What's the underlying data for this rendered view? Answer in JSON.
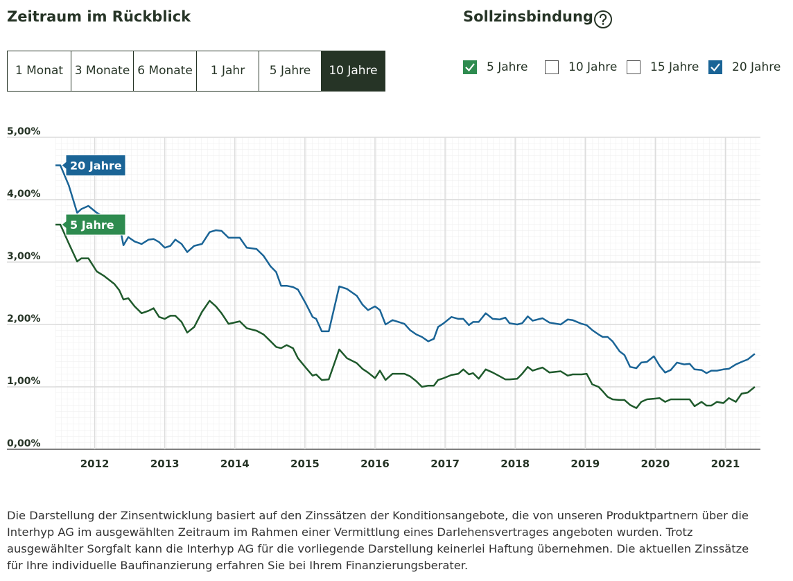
{
  "period": {
    "title": "Zeitraum im Rückblick",
    "options": [
      "1 Monat",
      "3 Monate",
      "6 Monate",
      "1 Jahr",
      "5 Jahre",
      "10 Jahre"
    ],
    "selected": 5
  },
  "binding": {
    "title": "Sollzinsbindung",
    "options": [
      {
        "label": "5 Jahre",
        "checked": true,
        "color": "#2e8b4f"
      },
      {
        "label": "10 Jahre",
        "checked": false,
        "color": "#2e8b4f"
      },
      {
        "label": "15 Jahre",
        "checked": false,
        "color": "#2e8b4f"
      },
      {
        "label": "20 Jahre",
        "checked": true,
        "color": "#1a6496"
      }
    ]
  },
  "chart_data": {
    "type": "line",
    "x": [
      2011.44,
      2011.51,
      2011.63,
      2011.75,
      2011.81,
      2011.91,
      2012.03,
      2012.13,
      2012.28,
      2012.35,
      2012.41,
      2012.48,
      2012.57,
      2012.67,
      2012.77,
      2012.84,
      2012.92,
      2013.0,
      2013.08,
      2013.15,
      2013.24,
      2013.32,
      2013.42,
      2013.53,
      2013.64,
      2013.73,
      2013.81,
      2013.91,
      2014.07,
      2014.17,
      2014.31,
      2014.41,
      2014.51,
      2014.59,
      2014.66,
      2014.74,
      2014.83,
      2014.9,
      2015.01,
      2015.11,
      2015.16,
      2015.24,
      2015.34,
      2015.49,
      2015.6,
      2015.74,
      2015.82,
      2015.9,
      2016.0,
      2016.07,
      2016.15,
      2016.25,
      2016.42,
      2016.5,
      2016.59,
      2016.67,
      2016.76,
      2016.84,
      2016.9,
      2016.98,
      2017.09,
      2017.19,
      2017.26,
      2017.34,
      2017.4,
      2017.48,
      2017.58,
      2017.68,
      2017.78,
      2017.86,
      2017.92,
      2018.03,
      2018.1,
      2018.18,
      2018.25,
      2018.39,
      2018.49,
      2018.65,
      2018.75,
      2018.82,
      2018.95,
      2019.02,
      2019.1,
      2019.19,
      2019.25,
      2019.32,
      2019.39,
      2019.49,
      2019.56,
      2019.64,
      2019.73,
      2019.8,
      2019.88,
      2019.98,
      2020.06,
      2020.14,
      2020.22,
      2020.31,
      2020.41,
      2020.49,
      2020.56,
      2020.66,
      2020.73,
      2020.8,
      2020.88,
      2020.97,
      2021.05,
      2021.15,
      2021.23,
      2021.32,
      2021.42
    ],
    "series": [
      {
        "name": "20 Jahre",
        "color": "#1a6496",
        "label_color": "#1a6496",
        "values": [
          4.55,
          4.55,
          4.23,
          3.79,
          3.85,
          3.9,
          3.79,
          3.73,
          3.65,
          3.62,
          3.27,
          3.4,
          3.33,
          3.29,
          3.36,
          3.37,
          3.32,
          3.23,
          3.26,
          3.36,
          3.29,
          3.16,
          3.26,
          3.29,
          3.48,
          3.51,
          3.5,
          3.39,
          3.39,
          3.23,
          3.21,
          3.1,
          2.93,
          2.84,
          2.62,
          2.62,
          2.6,
          2.56,
          2.34,
          2.12,
          2.09,
          1.89,
          1.89,
          2.61,
          2.57,
          2.46,
          2.32,
          2.23,
          2.29,
          2.23,
          2.0,
          2.07,
          2.01,
          1.91,
          1.84,
          1.8,
          1.73,
          1.77,
          1.96,
          2.02,
          2.12,
          2.09,
          2.09,
          1.99,
          2.04,
          2.04,
          2.18,
          2.09,
          2.08,
          2.11,
          2.02,
          2.0,
          2.02,
          2.13,
          2.06,
          2.1,
          2.03,
          2.0,
          2.08,
          2.07,
          2.01,
          1.99,
          1.91,
          1.84,
          1.8,
          1.8,
          1.73,
          1.57,
          1.51,
          1.32,
          1.3,
          1.39,
          1.4,
          1.49,
          1.34,
          1.23,
          1.27,
          1.39,
          1.36,
          1.37,
          1.28,
          1.27,
          1.22,
          1.26,
          1.26,
          1.28,
          1.29,
          1.36,
          1.4,
          1.44,
          1.53
        ]
      },
      {
        "name": "5 Jahre",
        "color": "#1f5a2c",
        "label_color": "#2e8b4f",
        "values": [
          3.6,
          3.6,
          3.3,
          3.01,
          3.06,
          3.06,
          2.85,
          2.78,
          2.65,
          2.55,
          2.4,
          2.42,
          2.29,
          2.18,
          2.22,
          2.26,
          2.12,
          2.09,
          2.14,
          2.14,
          2.04,
          1.87,
          1.96,
          2.2,
          2.38,
          2.29,
          2.18,
          2.01,
          2.05,
          1.94,
          1.9,
          1.84,
          1.73,
          1.64,
          1.62,
          1.67,
          1.62,
          1.46,
          1.31,
          1.18,
          1.2,
          1.11,
          1.12,
          1.6,
          1.46,
          1.38,
          1.29,
          1.23,
          1.14,
          1.26,
          1.11,
          1.21,
          1.21,
          1.17,
          1.09,
          1.0,
          1.02,
          1.02,
          1.11,
          1.14,
          1.19,
          1.21,
          1.28,
          1.2,
          1.22,
          1.13,
          1.28,
          1.23,
          1.17,
          1.12,
          1.12,
          1.13,
          1.21,
          1.32,
          1.26,
          1.31,
          1.23,
          1.25,
          1.18,
          1.2,
          1.2,
          1.21,
          1.04,
          1.0,
          0.93,
          0.84,
          0.8,
          0.79,
          0.79,
          0.71,
          0.66,
          0.76,
          0.8,
          0.81,
          0.82,
          0.76,
          0.8,
          0.8,
          0.8,
          0.8,
          0.69,
          0.76,
          0.7,
          0.7,
          0.76,
          0.74,
          0.82,
          0.76,
          0.89,
          0.91,
          1.0
        ]
      }
    ],
    "xlim": [
      2011.44,
      2021.5
    ],
    "xticks": [
      2012,
      2013,
      2014,
      2015,
      2016,
      2017,
      2018,
      2019,
      2020,
      2021
    ],
    "ylim": [
      0,
      5
    ],
    "yticks": [
      {
        "value": 0,
        "label": "0,00%"
      },
      {
        "value": 1,
        "label": "1,00%"
      },
      {
        "value": 2,
        "label": "2,00%"
      },
      {
        "value": 3,
        "label": "3,00%"
      },
      {
        "value": 4,
        "label": "4,00%"
      },
      {
        "value": 5,
        "label": "5,00%"
      }
    ],
    "grid": true
  },
  "footnote": [
    "Die Darstellung der Zinsentwicklung basiert auf den Zinssätzen der Konditionsangebote, die von unseren Produktpartnern über die",
    "Interhyp AG im ausgewählten Zeitraum im Rahmen einer Vermittlung eines Darlehensvertrages angeboten wurden. Trotz",
    "ausgewählter Sorgfalt kann die Interhyp AG für die vorliegende Darstellung keinerlei Haftung übernehmen. Die aktuellen Zinssätze",
    "für Ihre individuelle Baufinanzierung erfahren Sie bei Ihrem Finanzierungsberater."
  ]
}
